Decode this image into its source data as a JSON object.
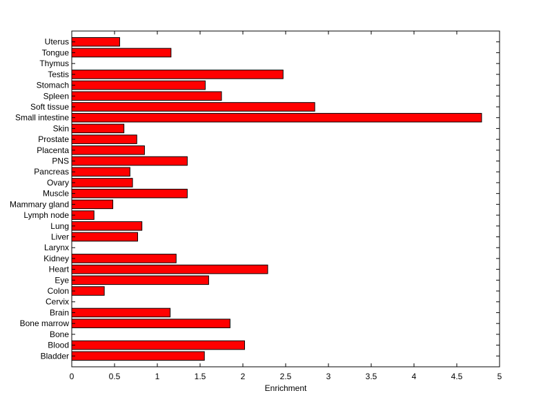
{
  "chart_data": {
    "type": "bar",
    "orientation": "horizontal",
    "title": "",
    "xlabel": "Enrichment",
    "ylabel": "",
    "xlim": [
      0,
      5
    ],
    "xticks": [
      "0",
      "0.5",
      "1",
      "1.5",
      "2",
      "2.5",
      "3",
      "3.5",
      "4",
      "4.5",
      "5"
    ],
    "grid": false,
    "legend": "none",
    "bar_color": "#ff0000",
    "bar_edge_color": "#000000",
    "categories": [
      "Bladder",
      "Blood",
      "Bone",
      "Bone marrow",
      "Brain",
      "Cervix",
      "Colon",
      "Eye",
      "Heart",
      "Kidney",
      "Larynx",
      "Liver",
      "Lung",
      "Lymph node",
      "Mammary gland",
      "Muscle",
      "Ovary",
      "Pancreas",
      "PNS",
      "Placenta",
      "Prostate",
      "Skin",
      "Small intestine",
      "Soft tissue",
      "Spleen",
      "Stomach",
      "Testis",
      "Thymus",
      "Tongue",
      "Uterus"
    ],
    "values": [
      1.55,
      2.02,
      0,
      1.85,
      1.15,
      0,
      0.38,
      1.6,
      2.29,
      1.22,
      0,
      0.77,
      0.82,
      0.26,
      0.48,
      1.35,
      0.71,
      0.68,
      1.35,
      0.85,
      0.76,
      0.61,
      4.79,
      2.84,
      1.75,
      1.56,
      2.47,
      0,
      1.16,
      0.56
    ]
  }
}
